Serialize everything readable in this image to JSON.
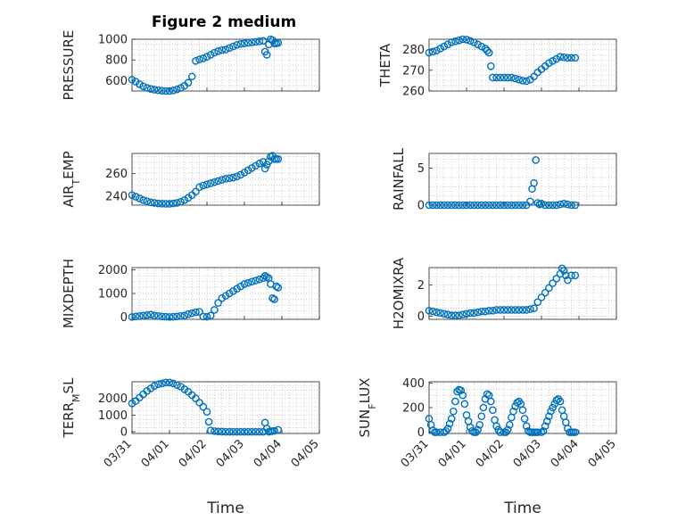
{
  "figure": {
    "title": "Figure 2 medium",
    "marker_color": "#0072bd",
    "axis_color": "#262626",
    "grid_color": "#b0b0b0"
  },
  "chart_data": [
    {
      "type": "scatter",
      "id": "pressure",
      "ylabel": "PRESSURE",
      "ylim": [
        500,
        1000
      ],
      "yticks": [
        600,
        800,
        1000
      ],
      "xlim": [
        0,
        5
      ],
      "xticklabels_shown": false,
      "grid": true,
      "series": [
        {
          "x": [
            0,
            0.1,
            0.2,
            0.3,
            0.4,
            0.5,
            0.6,
            0.7,
            0.8,
            0.9,
            1.0,
            1.1,
            1.2,
            1.3,
            1.4,
            1.5,
            1.6,
            1.7,
            1.8,
            1.9,
            2.0,
            2.1,
            2.2,
            2.3,
            2.4,
            2.5,
            2.6,
            2.7,
            2.8,
            2.9,
            3.0,
            3.1,
            3.2,
            3.3,
            3.4,
            3.5,
            3.55,
            3.6,
            3.65,
            3.7,
            3.75,
            3.8,
            3.85,
            3.9
          ],
          "y": [
            610,
            590,
            565,
            545,
            530,
            520,
            512,
            507,
            503,
            500,
            500,
            505,
            515,
            530,
            550,
            580,
            640,
            790,
            805,
            815,
            830,
            850,
            870,
            885,
            895,
            900,
            915,
            930,
            945,
            955,
            960,
            965,
            970,
            975,
            980,
            985,
            880,
            850,
            950,
            1000,
            990,
            960,
            960,
            965
          ]
        }
      ]
    },
    {
      "type": "scatter",
      "id": "theta",
      "ylabel": "THETA",
      "ylim": [
        260,
        285
      ],
      "yticks": [
        260,
        270,
        280
      ],
      "xlim": [
        0,
        5
      ],
      "xticklabels_shown": false,
      "grid": true,
      "series": [
        {
          "x": [
            0,
            0.1,
            0.2,
            0.3,
            0.4,
            0.5,
            0.6,
            0.7,
            0.8,
            0.9,
            1.0,
            1.1,
            1.2,
            1.3,
            1.4,
            1.5,
            1.55,
            1.6,
            1.65,
            1.7,
            1.8,
            1.9,
            2.0,
            2.1,
            2.2,
            2.3,
            2.4,
            2.5,
            2.6,
            2.7,
            2.8,
            2.9,
            3.0,
            3.1,
            3.2,
            3.3,
            3.4,
            3.5,
            3.6,
            3.7,
            3.8,
            3.9
          ],
          "y": [
            278.5,
            279,
            279.5,
            280.5,
            281.5,
            282.5,
            283.5,
            284,
            284.5,
            285,
            284.8,
            284.2,
            283.5,
            282.5,
            281.5,
            280.5,
            279.5,
            278.5,
            272,
            266.5,
            266.5,
            266.5,
            266.5,
            266.5,
            266.5,
            266,
            265.5,
            265,
            264.8,
            265.5,
            267,
            269,
            270.5,
            272,
            273.5,
            274.5,
            275.5,
            276.5,
            276.3,
            276,
            276,
            276
          ]
        }
      ]
    },
    {
      "type": "scatter",
      "id": "air_temp",
      "ylabel": "AIR_TEMP",
      "ylabel_main": "AIR",
      "ylabel_sub": "T",
      "ylabel_rest": "EMP",
      "ylim": [
        232,
        278
      ],
      "yticks": [
        240,
        260
      ],
      "xlim": [
        0,
        5
      ],
      "xticklabels_shown": false,
      "grid": true,
      "series": [
        {
          "x": [
            0,
            0.1,
            0.2,
            0.3,
            0.4,
            0.5,
            0.6,
            0.7,
            0.8,
            0.9,
            1.0,
            1.1,
            1.2,
            1.3,
            1.4,
            1.5,
            1.6,
            1.7,
            1.8,
            1.9,
            2.0,
            2.1,
            2.2,
            2.3,
            2.4,
            2.5,
            2.6,
            2.7,
            2.8,
            2.9,
            3.0,
            3.1,
            3.2,
            3.3,
            3.4,
            3.5,
            3.55,
            3.6,
            3.65,
            3.7,
            3.75,
            3.8,
            3.85,
            3.9
          ],
          "y": [
            241,
            239.5,
            238,
            236.5,
            235.5,
            234.5,
            234,
            233.5,
            233.3,
            233.2,
            233.2,
            233.5,
            234,
            235,
            236.5,
            238.5,
            241,
            244,
            248,
            249.5,
            250.5,
            251.5,
            252.5,
            253.5,
            254.5,
            255.5,
            256,
            256.5,
            257.5,
            259,
            261,
            263,
            265,
            267,
            269,
            270.5,
            264.5,
            268,
            271,
            275,
            276,
            273,
            273,
            273
          ]
        }
      ]
    },
    {
      "type": "scatter",
      "id": "rainfall",
      "ylabel": "RAINFALL",
      "ylim": [
        0,
        7
      ],
      "yticks": [
        0,
        5
      ],
      "xlim": [
        0,
        5
      ],
      "xticklabels_shown": false,
      "grid": true,
      "series": [
        {
          "x": [
            0,
            0.1,
            0.2,
            0.3,
            0.4,
            0.5,
            0.6,
            0.7,
            0.8,
            0.9,
            1.0,
            1.1,
            1.2,
            1.3,
            1.4,
            1.5,
            1.6,
            1.7,
            1.8,
            1.9,
            2.0,
            2.1,
            2.2,
            2.3,
            2.4,
            2.5,
            2.6,
            2.7,
            2.75,
            2.8,
            2.85,
            2.9,
            2.95,
            3.0,
            3.1,
            3.2,
            3.3,
            3.4,
            3.5,
            3.6,
            3.7,
            3.8,
            3.9
          ],
          "y": [
            0,
            0,
            0,
            0,
            0,
            0,
            0,
            0,
            0,
            0,
            0,
            0,
            0,
            0,
            0,
            0,
            0,
            0,
            0,
            0,
            0,
            0,
            0,
            0,
            0,
            0,
            0,
            0.5,
            2.2,
            3.0,
            6.1,
            0.3,
            0.1,
            0.2,
            0,
            0,
            0,
            0,
            0.1,
            0.2,
            0.1,
            0,
            0
          ]
        }
      ]
    },
    {
      "type": "scatter",
      "id": "mixdepth",
      "ylabel": "MIXDEPTH",
      "ylim": [
        -100,
        2100
      ],
      "yticks": [
        0,
        1000,
        2000
      ],
      "xlim": [
        0,
        5
      ],
      "xticklabels_shown": false,
      "grid": true,
      "series": [
        {
          "x": [
            0,
            0.1,
            0.2,
            0.3,
            0.4,
            0.5,
            0.6,
            0.7,
            0.8,
            0.9,
            1.0,
            1.1,
            1.2,
            1.3,
            1.4,
            1.5,
            1.6,
            1.7,
            1.8,
            1.9,
            2.0,
            2.1,
            2.2,
            2.3,
            2.4,
            2.5,
            2.6,
            2.7,
            2.8,
            2.9,
            3.0,
            3.1,
            3.2,
            3.3,
            3.4,
            3.5,
            3.55,
            3.6,
            3.65,
            3.7,
            3.75,
            3.8,
            3.85,
            3.9
          ],
          "y": [
            0,
            20,
            40,
            60,
            80,
            100,
            60,
            40,
            20,
            10,
            0,
            10,
            20,
            40,
            60,
            120,
            160,
            200,
            220,
            20,
            10,
            60,
            300,
            600,
            800,
            900,
            1000,
            1100,
            1200,
            1300,
            1400,
            1450,
            1500,
            1550,
            1600,
            1650,
            1750,
            1700,
            1650,
            1400,
            800,
            750,
            1300,
            1250
          ]
        }
      ]
    },
    {
      "type": "scatter",
      "id": "h2omixra",
      "ylabel": "H2OMIXRA",
      "ylim": [
        -0.2,
        3.1
      ],
      "yticks": [
        0,
        2
      ],
      "xlim": [
        0,
        5
      ],
      "xticklabels_shown": false,
      "grid": true,
      "series": [
        {
          "x": [
            0,
            0.1,
            0.2,
            0.3,
            0.4,
            0.5,
            0.6,
            0.7,
            0.8,
            0.9,
            1.0,
            1.1,
            1.2,
            1.3,
            1.4,
            1.5,
            1.6,
            1.7,
            1.8,
            1.9,
            2.0,
            2.1,
            2.2,
            2.3,
            2.4,
            2.5,
            2.6,
            2.7,
            2.8,
            2.9,
            3.0,
            3.1,
            3.2,
            3.3,
            3.4,
            3.5,
            3.55,
            3.6,
            3.65,
            3.7,
            3.8,
            3.9
          ],
          "y": [
            0.35,
            0.3,
            0.25,
            0.2,
            0.15,
            0.1,
            0.05,
            0.05,
            0.05,
            0.1,
            0.15,
            0.2,
            0.2,
            0.25,
            0.3,
            0.3,
            0.35,
            0.35,
            0.4,
            0.4,
            0.4,
            0.4,
            0.4,
            0.4,
            0.4,
            0.4,
            0.4,
            0.45,
            0.5,
            0.9,
            1.2,
            1.5,
            1.8,
            2.1,
            2.4,
            2.7,
            3.05,
            2.9,
            2.6,
            2.3,
            2.6,
            2.6
          ]
        }
      ]
    },
    {
      "type": "scatter",
      "id": "terr_msl",
      "ylabel": "TERR_MSL",
      "ylabel_main": "TERR",
      "ylabel_sub": "M",
      "ylabel_rest": "SL",
      "ylim": [
        -100,
        3000
      ],
      "yticks": [
        0,
        1000,
        2000
      ],
      "xlim": [
        0,
        5
      ],
      "xticks": [
        0,
        1,
        2,
        3,
        4,
        5
      ],
      "xticklabels": [
        "03/31",
        "04/01",
        "04/02",
        "04/03",
        "04/04",
        "04/05"
      ],
      "xlabel": "Time",
      "grid": true,
      "series": [
        {
          "x": [
            0,
            0.1,
            0.2,
            0.3,
            0.4,
            0.5,
            0.6,
            0.7,
            0.8,
            0.9,
            1.0,
            1.1,
            1.2,
            1.3,
            1.4,
            1.5,
            1.6,
            1.7,
            1.8,
            1.9,
            2.0,
            2.05,
            2.1,
            2.2,
            2.3,
            2.4,
            2.5,
            2.6,
            2.7,
            2.8,
            2.9,
            3.0,
            3.1,
            3.2,
            3.3,
            3.4,
            3.5,
            3.55,
            3.6,
            3.65,
            3.7,
            3.75,
            3.8,
            3.9
          ],
          "y": [
            1700,
            1850,
            2050,
            2250,
            2450,
            2600,
            2750,
            2850,
            2900,
            2950,
            2950,
            2900,
            2800,
            2700,
            2550,
            2400,
            2200,
            2000,
            1750,
            1500,
            1200,
            600,
            80,
            40,
            20,
            10,
            0,
            0,
            0,
            0,
            0,
            0,
            0,
            0,
            0,
            0,
            0,
            550,
            200,
            0,
            30,
            40,
            60,
            120
          ]
        }
      ]
    },
    {
      "type": "scatter",
      "id": "sun_flux",
      "ylabel": "SUN_FLUX",
      "ylabel_main": "SUN",
      "ylabel_sub": "F",
      "ylabel_rest": "LUX",
      "ylim": [
        -10,
        410
      ],
      "yticks": [
        0,
        200,
        400
      ],
      "xlim": [
        0,
        5
      ],
      "xticks": [
        0,
        1,
        2,
        3,
        4,
        5
      ],
      "xticklabels": [
        "03/31",
        "04/01",
        "04/02",
        "04/03",
        "04/04",
        "04/05"
      ],
      "xlabel": "Time",
      "grid": true,
      "series": [
        {
          "x": [
            0,
            0.05,
            0.1,
            0.15,
            0.2,
            0.3,
            0.4,
            0.45,
            0.5,
            0.55,
            0.6,
            0.65,
            0.7,
            0.75,
            0.8,
            0.85,
            0.9,
            0.95,
            1.0,
            1.05,
            1.1,
            1.15,
            1.2,
            1.25,
            1.3,
            1.35,
            1.4,
            1.45,
            1.5,
            1.55,
            1.6,
            1.65,
            1.7,
            1.75,
            1.8,
            1.85,
            1.9,
            2.0,
            2.05,
            2.1,
            2.15,
            2.2,
            2.25,
            2.3,
            2.35,
            2.4,
            2.45,
            2.5,
            2.55,
            2.6,
            2.65,
            2.7,
            2.75,
            2.8,
            2.85,
            2.9,
            3.0,
            3.05,
            3.1,
            3.15,
            3.2,
            3.25,
            3.3,
            3.35,
            3.4,
            3.45,
            3.5,
            3.55,
            3.6,
            3.65,
            3.7,
            3.75,
            3.8,
            3.85,
            3.9
          ],
          "y": [
            110,
            60,
            15,
            0,
            0,
            0,
            0,
            10,
            30,
            70,
            110,
            170,
            250,
            330,
            345,
            340,
            300,
            230,
            140,
            90,
            40,
            10,
            0,
            0,
            20,
            60,
            130,
            200,
            270,
            310,
            300,
            250,
            180,
            100,
            50,
            20,
            0,
            0,
            0,
            20,
            60,
            120,
            170,
            210,
            240,
            250,
            230,
            180,
            110,
            50,
            10,
            0,
            0,
            0,
            0,
            0,
            0,
            10,
            50,
            90,
            130,
            170,
            200,
            230,
            260,
            270,
            250,
            180,
            130,
            80,
            30,
            0,
            0,
            0,
            0
          ]
        }
      ]
    }
  ]
}
